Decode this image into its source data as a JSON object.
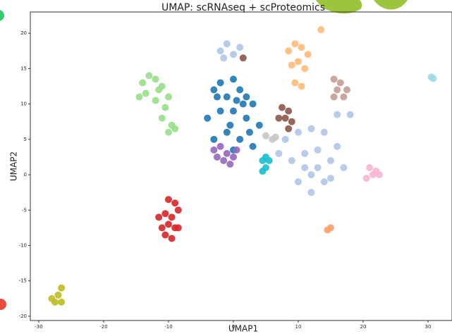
{
  "chart_data": {
    "type": "scatter",
    "title": "UMAP: scRNAseq + scProteomics",
    "x_label": "UMAP1",
    "y_label": "UMAP2",
    "xlim": [
      -31.3,
      33.7
    ],
    "ylim": [
      -20.6,
      23
    ],
    "xticks": [
      -30,
      -20,
      -10,
      0,
      10,
      20,
      30
    ],
    "yticks": [
      -20,
      -15,
      -10,
      -5,
      0,
      5,
      10,
      15,
      20
    ],
    "series": [
      {
        "color": "#98df8a",
        "x": [
          -14,
          -13,
          -12,
          -11,
          -10,
          -13.5,
          -12,
          -10.5,
          -11,
          -9.5,
          -10,
          -9,
          -11.5,
          -14.5
        ],
        "y": [
          13,
          14,
          13.5,
          12.5,
          11,
          11.5,
          10.5,
          9.5,
          8,
          7,
          6,
          6.5,
          12,
          11
        ]
      },
      {
        "color": "#1f77b4",
        "x": [
          -3,
          -2,
          -1,
          0,
          1,
          2,
          3,
          -4,
          4,
          -2,
          0,
          2,
          -1,
          1,
          0,
          -3,
          3,
          -0.5,
          1.5,
          -2.5,
          2.5,
          0.5
        ],
        "y": [
          12,
          13,
          11,
          13.5,
          12,
          11,
          10,
          8,
          7,
          9,
          9,
          8,
          6,
          5,
          3.5,
          5,
          4,
          7,
          10,
          11,
          6,
          10.5
        ]
      },
      {
        "color": "#9467bd",
        "x": [
          -3,
          -2,
          -1,
          0,
          -1.5,
          -0.5,
          -2.5,
          0.5
        ],
        "y": [
          3.5,
          4,
          3,
          2.5,
          2,
          1.5,
          2.5,
          3.5
        ]
      },
      {
        "color": "#aec7e8",
        "x": [
          8,
          10,
          12,
          14,
          16,
          9,
          11,
          13,
          15,
          17,
          10,
          12,
          14,
          7,
          12,
          13,
          11,
          16,
          18,
          15,
          -2,
          -1,
          0,
          1,
          -1.5
        ],
        "y": [
          5,
          6,
          6.5,
          6,
          4,
          2,
          3,
          3.5,
          2,
          1,
          -1,
          0,
          -1,
          3,
          -2.5,
          1,
          1,
          8.5,
          8.5,
          -0.5,
          17.5,
          18.5,
          17,
          18,
          16.5
        ]
      },
      {
        "color": "#ffbb78",
        "x": [
          8.5,
          9.5,
          10.5,
          11.5,
          9,
          10,
          11,
          9.5,
          10.5,
          13.5
        ],
        "y": [
          17.5,
          18.5,
          18,
          17,
          15.5,
          16,
          15,
          13,
          12.5,
          20.5
        ]
      },
      {
        "color": "#8c564b",
        "x": [
          7.5,
          8.5,
          7,
          8,
          9,
          8.5,
          1.5
        ],
        "y": [
          9.5,
          9,
          8,
          8,
          7.5,
          6.5,
          16.5
        ]
      },
      {
        "color": "#c49c94",
        "x": [
          15.5,
          16.5,
          17.5,
          16,
          17,
          15.5
        ],
        "y": [
          13.5,
          13,
          12,
          12,
          11,
          11
        ]
      },
      {
        "color": "#17becf",
        "x": [
          4.5,
          5,
          5.5,
          5,
          4.5
        ],
        "y": [
          2,
          2.5,
          2,
          1,
          0.5
        ]
      },
      {
        "color": "#f7b6d2",
        "x": [
          21,
          22,
          21.5,
          20.5,
          22.5
        ],
        "y": [
          1,
          0.5,
          0,
          -0.5,
          0
        ]
      },
      {
        "color": "#d62728",
        "x": [
          -11.5,
          -10.5,
          -9.5,
          -8.5,
          -11,
          -10,
          -9,
          -10.5,
          -9.5,
          -8.5,
          -10,
          -9
        ],
        "y": [
          -6,
          -5.5,
          -6,
          -5,
          -7.5,
          -7,
          -7.5,
          -8.5,
          -9,
          -7.5,
          -3.5,
          -4
        ]
      },
      {
        "color": "#bcbd22",
        "x": [
          -28,
          -27.5,
          -27,
          -26.5,
          -26.5
        ],
        "y": [
          -17.5,
          -18,
          -17,
          -16,
          -18
        ]
      },
      {
        "color": "#9edae5",
        "x": [
          30.5,
          30.8
        ],
        "y": [
          13.8,
          13.6
        ]
      },
      {
        "color": "#ff9f6a",
        "x": [
          14.5,
          15
        ],
        "y": [
          -7.8,
          -7.5
        ]
      },
      {
        "color": "#c7c7c7",
        "x": [
          5,
          6,
          6.5
        ],
        "y": [
          5.5,
          5,
          5.3
        ]
      }
    ]
  }
}
